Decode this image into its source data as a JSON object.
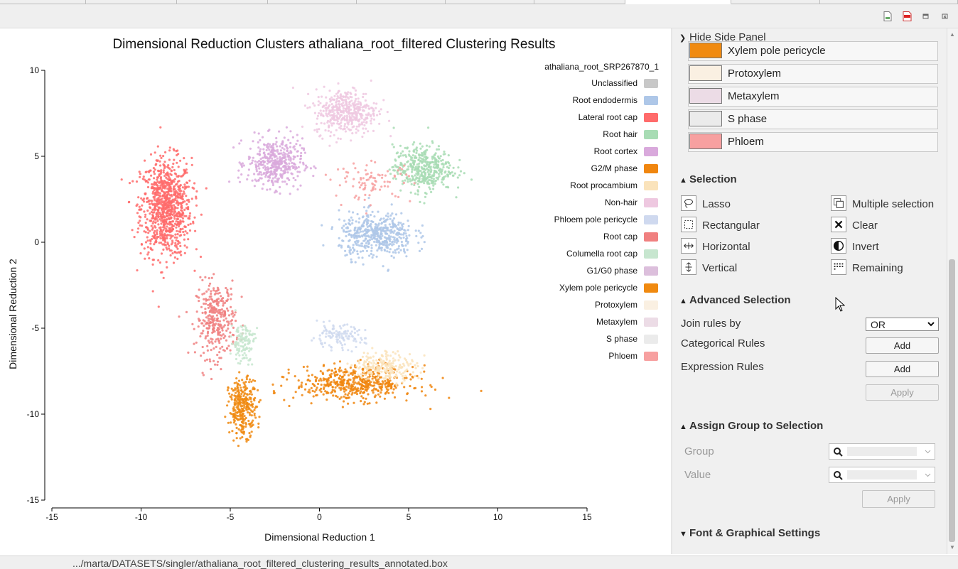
{
  "toolbar": {
    "icons": [
      "export-image-icon",
      "export-pdf-icon",
      "window-restore-icon",
      "window-close-icon"
    ]
  },
  "chart_data": {
    "type": "scatter",
    "title": "Dimensional Reduction Clusters athaliana_root_filtered Clustering Results",
    "xlabel": "Dimensional Reduction 1",
    "ylabel": "Dimensional Reduction 2",
    "xlim": [
      -15,
      15
    ],
    "ylim": [
      -15,
      10
    ],
    "xticks": [
      "-15",
      "-10",
      "-5",
      "0",
      "5",
      "10",
      "15"
    ],
    "yticks": [
      "10",
      "5",
      "0",
      "-5",
      "-10",
      "-15"
    ],
    "legend_title": "athaliana_root_SRP267870_1",
    "legend_position": "right",
    "legend": [
      {
        "label": "Unclassified",
        "color": "#c8c8c8"
      },
      {
        "label": "Root endodermis",
        "color": "#aec7e8"
      },
      {
        "label": "Lateral root cap",
        "color": "#ff6b6b"
      },
      {
        "label": "Root hair",
        "color": "#a8dcb4"
      },
      {
        "label": "Root cortex",
        "color": "#d9a9dc"
      },
      {
        "label": "G2/M phase",
        "color": "#f0860f"
      },
      {
        "label": "Root procambium",
        "color": "#fae3bb"
      },
      {
        "label": "Non-hair",
        "color": "#eec8e0"
      },
      {
        "label": "Phloem pole pericycle",
        "color": "#cfd9ef"
      },
      {
        "label": "Root cap",
        "color": "#f08080"
      },
      {
        "label": "Columella root cap",
        "color": "#c7e6cf"
      },
      {
        "label": "G1/G0 phase",
        "color": "#dcbfdc"
      },
      {
        "label": "Xylem pole pericycle",
        "color": "#f08a10"
      },
      {
        "label": "Protoxylem",
        "color": "#faf0e2"
      },
      {
        "label": "Metaxylem",
        "color": "#ecdce6"
      },
      {
        "label": "S phase",
        "color": "#ebebeb"
      },
      {
        "label": "Phloem",
        "color": "#f7a0a0"
      }
    ],
    "clusters": [
      {
        "label": "Lateral root cap",
        "center": [
          -8.6,
          2.0
        ],
        "spread": [
          1.3,
          2.6
        ],
        "n": 900
      },
      {
        "label": "Root cap",
        "center": [
          -5.8,
          -4.5
        ],
        "spread": [
          1.0,
          2.0
        ],
        "n": 320
      },
      {
        "label": "Root cortex",
        "center": [
          -2.5,
          4.6
        ],
        "spread": [
          1.4,
          1.3
        ],
        "n": 420
      },
      {
        "label": "Non-hair",
        "center": [
          1.5,
          7.6
        ],
        "spread": [
          1.6,
          1.2
        ],
        "n": 420
      },
      {
        "label": "Root hair",
        "center": [
          5.8,
          4.3
        ],
        "spread": [
          1.5,
          1.2
        ],
        "n": 420
      },
      {
        "label": "Root endodermis",
        "center": [
          3.2,
          0.4
        ],
        "spread": [
          1.9,
          1.2
        ],
        "n": 480
      },
      {
        "label": "G2/M phase",
        "center": [
          2.0,
          -8.2
        ],
        "spread": [
          3.0,
          0.9
        ],
        "n": 500
      },
      {
        "label": "Xylem pole pericycle",
        "center": [
          -4.3,
          -9.6
        ],
        "spread": [
          0.7,
          1.5
        ],
        "n": 300
      },
      {
        "label": "Root procambium",
        "center": [
          3.7,
          -7.2
        ],
        "spread": [
          1.6,
          0.8
        ],
        "n": 200
      },
      {
        "label": "Columella root cap",
        "center": [
          -4.3,
          -5.8
        ],
        "spread": [
          0.6,
          1.1
        ],
        "n": 120
      },
      {
        "label": "Phloem pole pericycle",
        "center": [
          1.0,
          -5.5
        ],
        "spread": [
          1.4,
          0.6
        ],
        "n": 120
      },
      {
        "label": "Phloem",
        "center": [
          3.0,
          3.5
        ],
        "spread": [
          2.0,
          1.0
        ],
        "n": 90
      }
    ]
  },
  "side": {
    "hide_label": "Hide Side Panel",
    "legend_items": [
      {
        "label": "Xylem pole pericycle",
        "color": "#f08a10"
      },
      {
        "label": "Protoxylem",
        "color": "#faf0e2"
      },
      {
        "label": "Metaxylem",
        "color": "#ecdce6"
      },
      {
        "label": "S phase",
        "color": "#ebebeb"
      },
      {
        "label": "Phloem",
        "color": "#f7a0a0"
      }
    ],
    "selection": {
      "title": "Selection",
      "lasso": "Lasso",
      "rectangular": "Rectangular",
      "horizontal": "Horizontal",
      "vertical": "Vertical",
      "multiple": "Multiple selection",
      "clear": "Clear",
      "invert": "Invert",
      "remaining": "Remaining"
    },
    "advanced": {
      "title": "Advanced Selection",
      "join_label": "Join rules by",
      "join_value": "OR",
      "categorical_label": "Categorical Rules",
      "expression_label": "Expression Rules",
      "add_label": "Add",
      "apply_label": "Apply"
    },
    "assign": {
      "title": "Assign Group to Selection",
      "group_label": "Group",
      "value_label": "Value",
      "apply_label": "Apply"
    },
    "font": {
      "title": "Font & Graphical Settings"
    }
  },
  "status": {
    "path": ".../marta/DATASETS/singler/athaliana_root_filtered_clustering_results_annotated.box"
  }
}
